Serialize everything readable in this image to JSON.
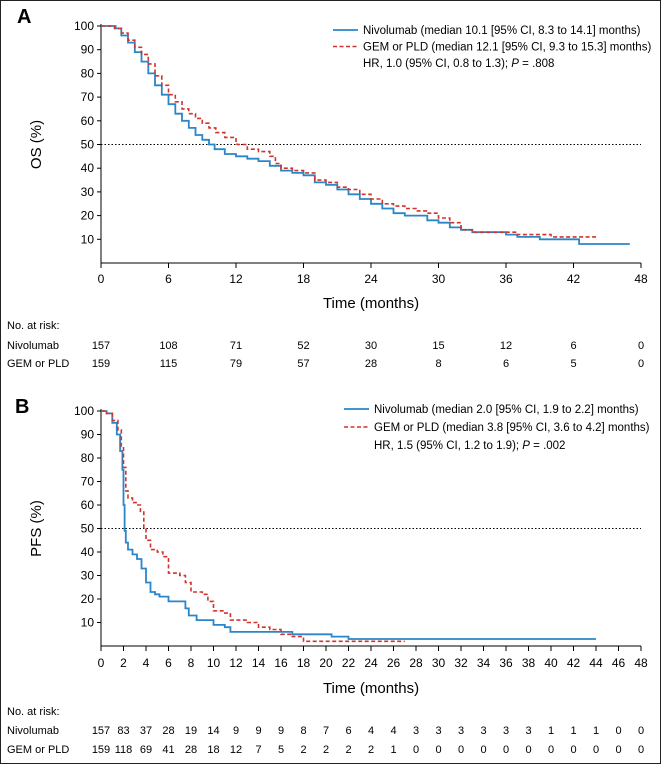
{
  "chart_data": [
    {
      "type": "line",
      "panel_label": "A",
      "title": "",
      "ylabel": "OS (%)",
      "xlabel": "Time (months)",
      "ylim": [
        0,
        100
      ],
      "xlim": [
        0,
        48
      ],
      "x_ticks": [
        0,
        6,
        12,
        18,
        24,
        30,
        36,
        42,
        48
      ],
      "y_ticks": [
        10,
        20,
        30,
        40,
        50,
        60,
        70,
        80,
        90,
        100
      ],
      "reference_line": 50,
      "series": [
        {
          "name": "Nivolumab (median 10.1 [95% CI, 8.3 to 14.1] months)",
          "color": "#2a86c8",
          "style": "solid",
          "points": [
            [
              0,
              100
            ],
            [
              1.3,
              99
            ],
            [
              1.8,
              96
            ],
            [
              2.4,
              93
            ],
            [
              3,
              89
            ],
            [
              3.6,
              85
            ],
            [
              4.2,
              80
            ],
            [
              4.8,
              75
            ],
            [
              5.4,
              71
            ],
            [
              6,
              67
            ],
            [
              6.6,
              63
            ],
            [
              7.2,
              60
            ],
            [
              7.8,
              57
            ],
            [
              8.4,
              54
            ],
            [
              9,
              52
            ],
            [
              9.6,
              50
            ],
            [
              10.1,
              48
            ],
            [
              11,
              46
            ],
            [
              12,
              45
            ],
            [
              13,
              44
            ],
            [
              14,
              43
            ],
            [
              15,
              41
            ],
            [
              16,
              39
            ],
            [
              17,
              38
            ],
            [
              18,
              37
            ],
            [
              19,
              34
            ],
            [
              20,
              33
            ],
            [
              21,
              31
            ],
            [
              22,
              29
            ],
            [
              23,
              27
            ],
            [
              24,
              25
            ],
            [
              25,
              23
            ],
            [
              26,
              21
            ],
            [
              27,
              20
            ],
            [
              28,
              20
            ],
            [
              29,
              18
            ],
            [
              30,
              17
            ],
            [
              31,
              15
            ],
            [
              32,
              14
            ],
            [
              33,
              13
            ],
            [
              34,
              13
            ],
            [
              35,
              13
            ],
            [
              36,
              12
            ],
            [
              37,
              11
            ],
            [
              38,
              11
            ],
            [
              39,
              10
            ],
            [
              40,
              10
            ],
            [
              41,
              10
            ],
            [
              42,
              10
            ],
            [
              42.5,
              8
            ],
            [
              44,
              8
            ],
            [
              46,
              8
            ],
            [
              47,
              8
            ]
          ]
        },
        {
          "name": "GEM or PLD (median 12.1 [95% CI, 9.3 to 15.3] months)",
          "color": "#d0342c",
          "style": "dashed",
          "points": [
            [
              0,
              100
            ],
            [
              1.2,
              99
            ],
            [
              1.8,
              97
            ],
            [
              2.4,
              94
            ],
            [
              3,
              91
            ],
            [
              3.6,
              88
            ],
            [
              4.2,
              84
            ],
            [
              4.8,
              79
            ],
            [
              5.4,
              75
            ],
            [
              6,
              71
            ],
            [
              6.6,
              68
            ],
            [
              7.2,
              65
            ],
            [
              7.8,
              63
            ],
            [
              8.4,
              61
            ],
            [
              9,
              59
            ],
            [
              9.6,
              57
            ],
            [
              10.2,
              55
            ],
            [
              11,
              53
            ],
            [
              12,
              51
            ],
            [
              12.1,
              50
            ],
            [
              13,
              48
            ],
            [
              14,
              47
            ],
            [
              15,
              45
            ],
            [
              15.5,
              42
            ],
            [
              16,
              40
            ],
            [
              17,
              39
            ],
            [
              18,
              38
            ],
            [
              19,
              35
            ],
            [
              20,
              34
            ],
            [
              21,
              32
            ],
            [
              22,
              31
            ],
            [
              23,
              29
            ],
            [
              24,
              27
            ],
            [
              25,
              25
            ],
            [
              26,
              24
            ],
            [
              27,
              23
            ],
            [
              28,
              22
            ],
            [
              29,
              21
            ],
            [
              30,
              19
            ],
            [
              31,
              17
            ],
            [
              32,
              14
            ],
            [
              33,
              13
            ],
            [
              34,
              13
            ],
            [
              35,
              13
            ],
            [
              36,
              13
            ],
            [
              37,
              12
            ],
            [
              38,
              12
            ],
            [
              40,
              11
            ],
            [
              42,
              11
            ],
            [
              43,
              11
            ],
            [
              44,
              11
            ]
          ]
        }
      ],
      "hr_text": "HR, 1.0 (95% CI, 0.8 to 1.3); ",
      "p_label": "P",
      "p_text": " = .808",
      "risk_table": {
        "title": "No. at risk:",
        "rows": [
          {
            "label": "Nivolumab",
            "values": [
              "157",
              "108",
              "71",
              "52",
              "30",
              "15",
              "12",
              "6",
              "0"
            ]
          },
          {
            "label": "GEM or PLD",
            "values": [
              "159",
              "115",
              "79",
              "57",
              "28",
              "8",
              "6",
              "5",
              "0"
            ]
          }
        ]
      }
    },
    {
      "type": "line",
      "panel_label": "B",
      "title": "",
      "ylabel": "PFS (%)",
      "xlabel": "Time (months)",
      "ylim": [
        0,
        100
      ],
      "xlim": [
        0,
        48
      ],
      "x_ticks": [
        0,
        2,
        4,
        6,
        8,
        10,
        12,
        14,
        16,
        18,
        20,
        22,
        24,
        26,
        28,
        30,
        32,
        34,
        36,
        38,
        40,
        42,
        44,
        46,
        48
      ],
      "y_ticks": [
        10,
        20,
        30,
        40,
        50,
        60,
        70,
        80,
        90,
        100
      ],
      "reference_line": 50,
      "series": [
        {
          "name": "Nivolumab (median 2.0 [95% CI, 1.9 to 2.2] months)",
          "color": "#2a86c8",
          "style": "solid",
          "points": [
            [
              0,
              100
            ],
            [
              0.5,
              99
            ],
            [
              1,
              95
            ],
            [
              1.4,
              90
            ],
            [
              1.7,
              83
            ],
            [
              1.9,
              75
            ],
            [
              2,
              60
            ],
            [
              2.1,
              49
            ],
            [
              2.2,
              44
            ],
            [
              2.4,
              41
            ],
            [
              2.8,
              39
            ],
            [
              3.2,
              37
            ],
            [
              3.6,
              33
            ],
            [
              4,
              27
            ],
            [
              4.4,
              23
            ],
            [
              4.8,
              22
            ],
            [
              5.2,
              21
            ],
            [
              6,
              19
            ],
            [
              7,
              19
            ],
            [
              7.5,
              16
            ],
            [
              7.8,
              13
            ],
            [
              8.5,
              11
            ],
            [
              9,
              11
            ],
            [
              10,
              9
            ],
            [
              11,
              8
            ],
            [
              11.5,
              6
            ],
            [
              14,
              6
            ],
            [
              17,
              5
            ],
            [
              18,
              5
            ],
            [
              20,
              5
            ],
            [
              20.5,
              4
            ],
            [
              22,
              3
            ],
            [
              24,
              3
            ],
            [
              30,
              3
            ],
            [
              36,
              3
            ],
            [
              40,
              3
            ],
            [
              44,
              3
            ]
          ]
        },
        {
          "name": "GEM or PLD (median 3.8 [95% CI, 3.6 to 4.2] months)",
          "color": "#d0342c",
          "style": "dashed",
          "points": [
            [
              0,
              100
            ],
            [
              0.5,
              99
            ],
            [
              1,
              96
            ],
            [
              1.5,
              92
            ],
            [
              1.8,
              85
            ],
            [
              2,
              76
            ],
            [
              2.2,
              66
            ],
            [
              2.4,
              63
            ],
            [
              2.8,
              61
            ],
            [
              3.2,
              60
            ],
            [
              3.5,
              57
            ],
            [
              3.8,
              50
            ],
            [
              4,
              45
            ],
            [
              4.4,
              41
            ],
            [
              5,
              40
            ],
            [
              5.5,
              38
            ],
            [
              6,
              31
            ],
            [
              7,
              30
            ],
            [
              7.5,
              27
            ],
            [
              8,
              23
            ],
            [
              9,
              22
            ],
            [
              9.5,
              19
            ],
            [
              10,
              15
            ],
            [
              11,
              14
            ],
            [
              11.5,
              11
            ],
            [
              13,
              10
            ],
            [
              14,
              8
            ],
            [
              15,
              7
            ],
            [
              16,
              5
            ],
            [
              17,
              4
            ],
            [
              18,
              2
            ],
            [
              20,
              2
            ],
            [
              22,
              2
            ],
            [
              25,
              2
            ],
            [
              27,
              2
            ]
          ]
        }
      ],
      "hr_text": "HR, 1.5 (95% CI, 1.2 to 1.9); ",
      "p_label": "P",
      "p_text": " = .002",
      "risk_table": {
        "title": "No. at risk:",
        "rows": [
          {
            "label": "Nivolumab",
            "values": [
              "157",
              "83",
              "37",
              "28",
              "19",
              "14",
              "9",
              "9",
              "9",
              "8",
              "7",
              "6",
              "4",
              "4",
              "3",
              "3",
              "3",
              "3",
              "3",
              "3",
              "1",
              "1",
              "1",
              "0",
              "0"
            ]
          },
          {
            "label": "GEM or PLD",
            "values": [
              "159",
              "118",
              "69",
              "41",
              "28",
              "18",
              "12",
              "7",
              "5",
              "2",
              "2",
              "2",
              "2",
              "1",
              "0",
              "0",
              "0",
              "0",
              "0",
              "0",
              "0",
              "0",
              "0",
              "0",
              "0"
            ]
          }
        ]
      }
    }
  ]
}
